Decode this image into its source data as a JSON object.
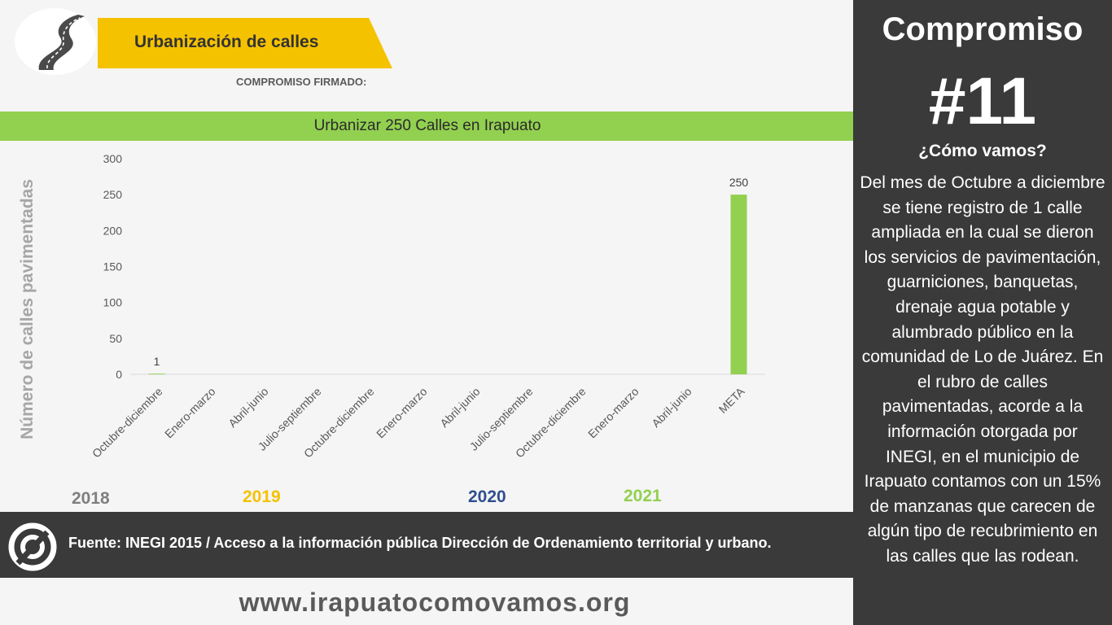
{
  "header": {
    "title": "Urbanización de calles",
    "subtitle": "COMPROMISO FIRMADO:"
  },
  "goal": {
    "text": "Urbanizar 250 Calles en Irapuato"
  },
  "chart_data": {
    "type": "bar",
    "title": "",
    "xlabel": "",
    "ylabel": "Número de calles pavimentadas",
    "ylim": [
      0,
      300
    ],
    "yticks": [
      0,
      50,
      100,
      150,
      200,
      250,
      300
    ],
    "categories": [
      "Octubre-diciembre",
      "Enero-marzo",
      "Abril-junio",
      "Julio-septiembre",
      "Octubre-diciembre",
      "Enero-marzo",
      "Abril-junio",
      "Julio-septiembre",
      "Octubre-diciembre",
      "Enero-marzo",
      "Abril-junio",
      "META"
    ],
    "values": [
      1,
      0,
      0,
      0,
      0,
      0,
      0,
      0,
      0,
      0,
      0,
      250
    ],
    "data_labels": [
      "1",
      "",
      "",
      "",
      "",
      "",
      "",
      "",
      "",
      "",
      "",
      "250"
    ],
    "bar_color": "#92d050",
    "grid": false
  },
  "years": [
    {
      "label": "2018",
      "color": "#7f7f7f"
    },
    {
      "label": "2019",
      "color": "#f5c200"
    },
    {
      "label": "2020",
      "color": "#2f4f8f"
    },
    {
      "label": "2021",
      "color": "#92d050"
    }
  ],
  "footer": {
    "source": "Fuente: INEGI 2015 / Acceso a la información pública Dirección de Ordenamiento territorial y urbano.",
    "url": "www.irapuatocomovamos.org"
  },
  "panel": {
    "title": "Compromiso",
    "number": "#11",
    "subtitle": "¿Cómo vamos?",
    "body": "Del mes de Octubre a diciembre se tiene registro de 1 calle ampliada en la cual se dieron los servicios de pavimentación, guarniciones, banquetas, drenaje agua potable y alumbrado público en la comunidad de Lo de Juárez. En el rubro de calles pavimentadas, acorde a la información otorgada por INEGI, en el municipio de Irapuato contamos con un 15% de manzanas que carecen de algún tipo de recubrimiento en las calles que las rodean."
  },
  "icons": [
    "road-icon",
    "source-logo-icon"
  ]
}
